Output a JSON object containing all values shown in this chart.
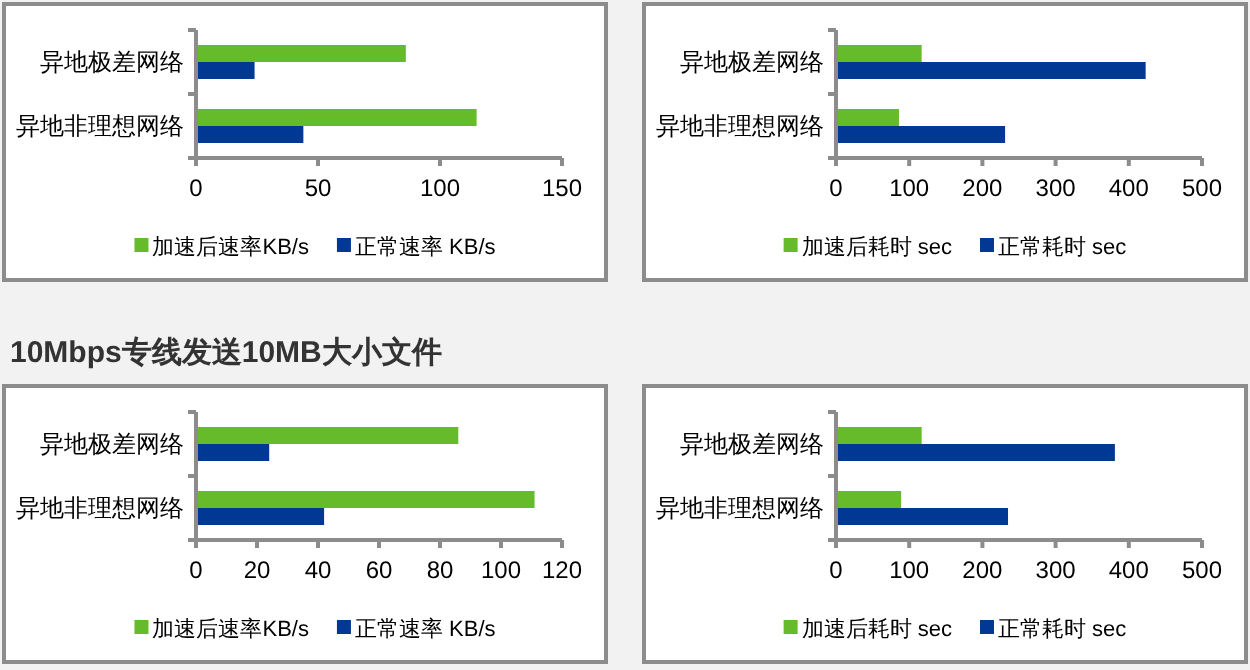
{
  "chart_data": [
    {
      "type": "bar",
      "orientation": "horizontal",
      "categories": [
        "异地极差网络",
        "异地非理想网络"
      ],
      "series": [
        {
          "name": "加速后速率KB/s",
          "color": "#66bb2a",
          "values": [
            86,
            115
          ]
        },
        {
          "name": "正常速率 KB/s",
          "color": "#003893",
          "values": [
            24,
            44
          ]
        }
      ],
      "xlim": [
        0,
        150
      ],
      "xticks": [
        0,
        50,
        100,
        150
      ],
      "legend": "bottom",
      "grid": false
    },
    {
      "type": "bar",
      "orientation": "horizontal",
      "categories": [
        "异地极差网络",
        "异地非理想网络"
      ],
      "series": [
        {
          "name": "加速后耗时 sec",
          "color": "#66bb2a",
          "values": [
            117,
            86
          ]
        },
        {
          "name": "正常耗时 sec",
          "color": "#003893",
          "values": [
            423,
            231
          ]
        }
      ],
      "xlim": [
        0,
        500
      ],
      "xticks": [
        0,
        100,
        200,
        300,
        400,
        500
      ],
      "legend": "bottom",
      "grid": false
    },
    {
      "type": "bar",
      "orientation": "horizontal",
      "title": "10Mbps专线发送10MB大小文件",
      "categories": [
        "异地极差网络",
        "异地非理想网络"
      ],
      "series": [
        {
          "name": "加速后速率KB/s",
          "color": "#66bb2a",
          "values": [
            86,
            111
          ]
        },
        {
          "name": "正常速率 KB/s",
          "color": "#003893",
          "values": [
            24,
            42
          ]
        }
      ],
      "xlim": [
        0,
        120
      ],
      "xticks": [
        0,
        20,
        40,
        60,
        80,
        100,
        120
      ],
      "legend": "bottom",
      "grid": false
    },
    {
      "type": "bar",
      "orientation": "horizontal",
      "categories": [
        "异地极差网络",
        "异地非理想网络"
      ],
      "series": [
        {
          "name": "加速后耗时 sec",
          "color": "#66bb2a",
          "values": [
            117,
            89
          ]
        },
        {
          "name": "正常耗时 sec",
          "color": "#003893",
          "values": [
            381,
            235
          ]
        }
      ],
      "xlim": [
        0,
        500
      ],
      "xticks": [
        0,
        100,
        200,
        300,
        400,
        500
      ],
      "legend": "bottom",
      "grid": false
    }
  ]
}
